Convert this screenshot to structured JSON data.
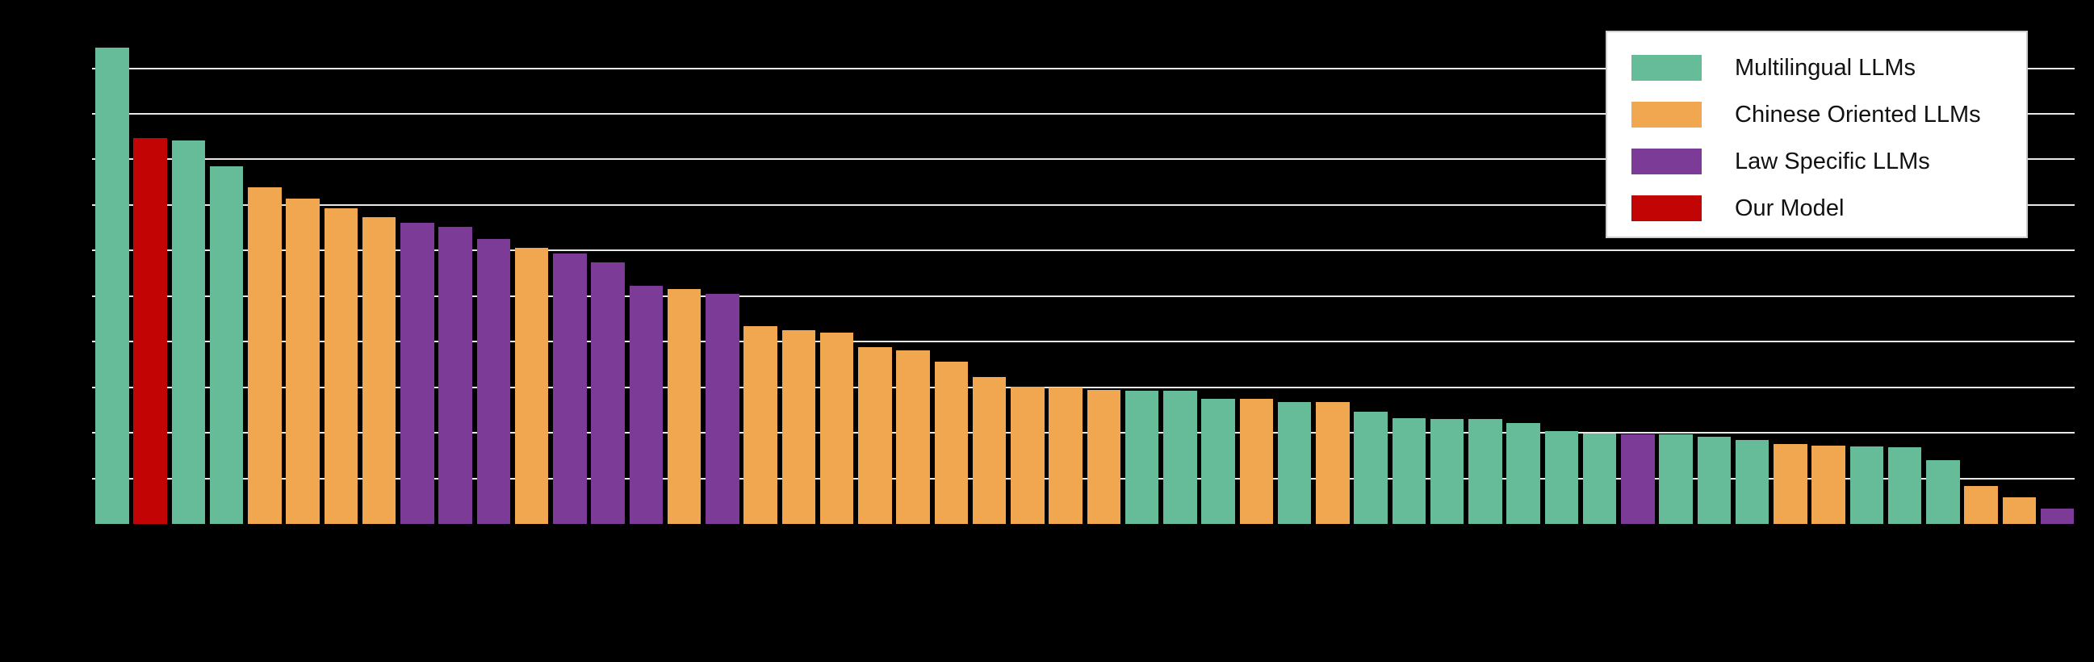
{
  "figure": {
    "background": "#000000",
    "gridline_color": "#e8e8e6"
  },
  "colors": {
    "multilingual": "#66BB98",
    "chinese": "#F0A74F",
    "law": "#7C3B96",
    "our_model": "#C30404"
  },
  "legend": {
    "items": [
      {
        "label": "Multilingual LLMs",
        "group": "multilingual",
        "color": "#66BB98"
      },
      {
        "label": "Chinese Oriented LLMs",
        "group": "chinese",
        "color": "#F0A74F"
      },
      {
        "label": "Law Specific LLMs",
        "group": "law",
        "color": "#7C3B96"
      },
      {
        "label": "Our Model",
        "group": "our_model",
        "color": "#C30404"
      }
    ]
  },
  "chart_data": {
    "type": "bar",
    "title": "",
    "xlabel": "",
    "ylabel": "",
    "x_tick_labels_visible": false,
    "y_tick_labels_visible": false,
    "legend_position": "upper right",
    "ylim": [
      0,
      55
    ],
    "y_axis": {
      "gridline_interval": 5,
      "gridline_values": [
        50,
        45,
        40,
        35,
        30,
        25,
        20,
        15,
        10,
        5
      ]
    },
    "legend_entries": [
      "Multilingual LLMs",
      "Chinese Oriented LLMs",
      "Law Specific LLMs",
      "Our Model"
    ],
    "bars": [
      {
        "value": 52.3,
        "group": "multilingual"
      },
      {
        "value": 42.3,
        "group": "our_model"
      },
      {
        "value": 42.1,
        "group": "multilingual"
      },
      {
        "value": 39.2,
        "group": "multilingual"
      },
      {
        "value": 36.9,
        "group": "chinese"
      },
      {
        "value": 35.7,
        "group": "chinese"
      },
      {
        "value": 34.6,
        "group": "chinese"
      },
      {
        "value": 33.7,
        "group": "chinese"
      },
      {
        "value": 33.0,
        "group": "law"
      },
      {
        "value": 32.6,
        "group": "law"
      },
      {
        "value": 31.3,
        "group": "law"
      },
      {
        "value": 30.3,
        "group": "chinese"
      },
      {
        "value": 29.7,
        "group": "law"
      },
      {
        "value": 28.7,
        "group": "law"
      },
      {
        "value": 26.1,
        "group": "law"
      },
      {
        "value": 25.8,
        "group": "chinese"
      },
      {
        "value": 25.2,
        "group": "law"
      },
      {
        "value": 21.7,
        "group": "chinese"
      },
      {
        "value": 21.3,
        "group": "chinese"
      },
      {
        "value": 21.0,
        "group": "chinese"
      },
      {
        "value": 19.4,
        "group": "chinese"
      },
      {
        "value": 19.0,
        "group": "chinese"
      },
      {
        "value": 17.8,
        "group": "chinese"
      },
      {
        "value": 16.1,
        "group": "chinese"
      },
      {
        "value": 15.1,
        "group": "chinese"
      },
      {
        "value": 15.0,
        "group": "chinese"
      },
      {
        "value": 14.7,
        "group": "chinese"
      },
      {
        "value": 14.6,
        "group": "multilingual"
      },
      {
        "value": 14.6,
        "group": "multilingual"
      },
      {
        "value": 13.7,
        "group": "multilingual"
      },
      {
        "value": 13.7,
        "group": "chinese"
      },
      {
        "value": 13.4,
        "group": "multilingual"
      },
      {
        "value": 13.4,
        "group": "chinese"
      },
      {
        "value": 12.3,
        "group": "multilingual"
      },
      {
        "value": 11.6,
        "group": "multilingual"
      },
      {
        "value": 11.5,
        "group": "multilingual"
      },
      {
        "value": 11.5,
        "group": "multilingual"
      },
      {
        "value": 11.1,
        "group": "multilingual"
      },
      {
        "value": 10.2,
        "group": "multilingual"
      },
      {
        "value": 9.9,
        "group": "multilingual"
      },
      {
        "value": 9.8,
        "group": "law"
      },
      {
        "value": 9.8,
        "group": "multilingual"
      },
      {
        "value": 9.6,
        "group": "multilingual"
      },
      {
        "value": 9.2,
        "group": "multilingual"
      },
      {
        "value": 8.8,
        "group": "chinese"
      },
      {
        "value": 8.6,
        "group": "chinese"
      },
      {
        "value": 8.5,
        "group": "multilingual"
      },
      {
        "value": 8.4,
        "group": "multilingual"
      },
      {
        "value": 7.0,
        "group": "multilingual"
      },
      {
        "value": 4.2,
        "group": "chinese"
      },
      {
        "value": 2.9,
        "group": "chinese"
      },
      {
        "value": 1.7,
        "group": "law"
      }
    ]
  }
}
